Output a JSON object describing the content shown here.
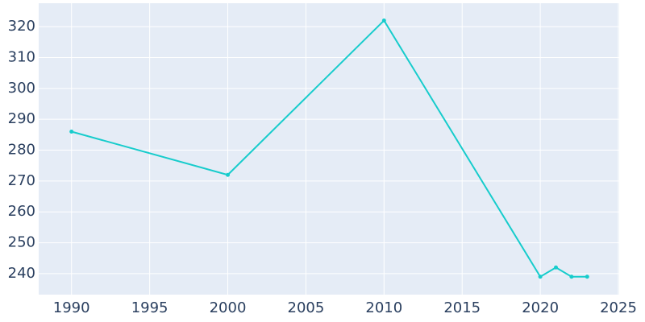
{
  "chart_data": {
    "type": "line",
    "x": [
      1990,
      2000,
      2010,
      2020,
      2021,
      2022,
      2023
    ],
    "series": [
      {
        "color": "#17cccc",
        "values": [
          286,
          272,
          322,
          239,
          242,
          239,
          239
        ]
      }
    ],
    "xlim": [
      1987.9,
      2025.05
    ],
    "xticks": [
      1990,
      1995,
      2000,
      2005,
      2010,
      2015,
      2020,
      2025
    ],
    "ylim": [
      233.2,
      327.6
    ],
    "yticks": [
      240,
      250,
      260,
      270,
      280,
      290,
      300,
      310,
      320
    ],
    "grid": true
  }
}
